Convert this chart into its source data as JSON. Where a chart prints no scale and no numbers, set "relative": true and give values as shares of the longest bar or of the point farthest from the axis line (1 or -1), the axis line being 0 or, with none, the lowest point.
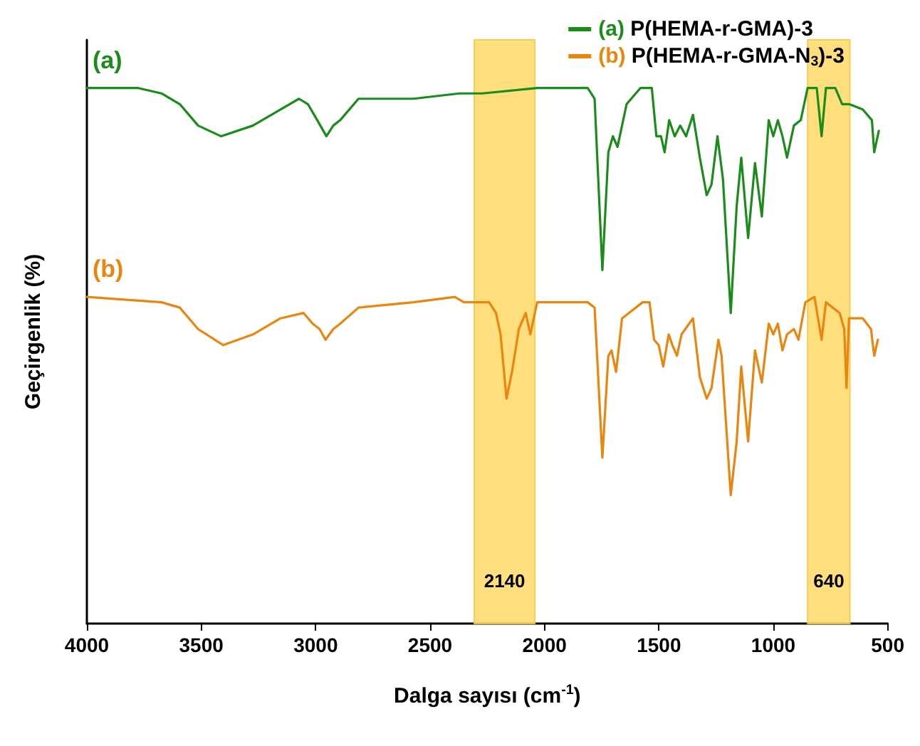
{
  "chart_data": {
    "type": "line",
    "relative": true,
    "xlabel": "Dalga sayısı (cm$^{-1}$)",
    "ylabel": "Geçirgenlik (%)",
    "xlim": [
      4000,
      500
    ],
    "xticks": [
      4000,
      3500,
      3000,
      2500,
      2000,
      1500,
      1000,
      500
    ],
    "grid": false,
    "legend": "top right",
    "marker": "none",
    "line_style": "solid",
    "annotations": [
      "(a)",
      "(b)"
    ],
    "bands": [
      {
        "axis": "x",
        "from": 2307,
        "to": 2042,
        "label": "2140",
        "color": "#ffd966"
      },
      {
        "axis": "x",
        "from": 850,
        "to": 665,
        "label": "640",
        "color": "#ffd966"
      }
    ],
    "series": [
      {
        "name": "(a) P(HEMA-r-GMA)-3",
        "color": "#1a8c1a",
        "x": [
          4000,
          3775,
          3674,
          3594,
          3514,
          3414,
          3274,
          3154,
          3073,
          3034,
          2993,
          2953,
          2923,
          2893,
          2813,
          2573,
          2372,
          2272,
          2032,
          1811,
          1781,
          1747,
          1721,
          1701,
          1681,
          1641,
          1581,
          1531,
          1511,
          1491,
          1475,
          1455,
          1431,
          1407,
          1381,
          1351,
          1321,
          1291,
          1270,
          1244,
          1220,
          1186,
          1160,
          1140,
          1110,
          1080,
          1050,
          1020,
          1000,
          980,
          960,
          940,
          910,
          880,
          850,
          810,
          789,
          770,
          729,
          699,
          669,
          609,
          569,
          559,
          539
        ],
        "values": [
          1.0,
          1.0,
          0.99,
          0.97,
          0.93,
          0.91,
          0.93,
          0.96,
          0.98,
          0.97,
          0.94,
          0.91,
          0.93,
          0.94,
          0.98,
          0.98,
          0.99,
          0.99,
          1.0,
          1.0,
          0.98,
          0.66,
          0.88,
          0.91,
          0.89,
          0.97,
          1.0,
          1.0,
          0.91,
          0.91,
          0.88,
          0.94,
          0.91,
          0.93,
          0.91,
          0.95,
          0.87,
          0.8,
          0.82,
          0.91,
          0.83,
          0.58,
          0.78,
          0.87,
          0.72,
          0.86,
          0.76,
          0.94,
          0.91,
          0.94,
          0.91,
          0.87,
          0.93,
          0.94,
          1.0,
          1.0,
          0.91,
          1.0,
          1.0,
          0.97,
          0.97,
          0.96,
          0.94,
          0.88,
          0.92
        ]
      },
      {
        "name": "(b) P(HEMA-r-GMA-N$_{3}$)-3",
        "color": "#e8860f",
        "x": [
          4000,
          3674,
          3594,
          3514,
          3404,
          3274,
          3154,
          3053,
          3013,
          2983,
          2957,
          2923,
          2893,
          2813,
          2573,
          2392,
          2352,
          2332,
          2272,
          2242,
          2212,
          2192,
          2166,
          2142,
          2112,
          2082,
          2062,
          2032,
          1811,
          1781,
          1747,
          1721,
          1707,
          1687,
          1661,
          1631,
          1571,
          1541,
          1521,
          1501,
          1481,
          1457,
          1441,
          1421,
          1401,
          1351,
          1321,
          1291,
          1270,
          1240,
          1226,
          1186,
          1160,
          1140,
          1110,
          1080,
          1050,
          1020,
          1000,
          980,
          960,
          940,
          910,
          890,
          860,
          820,
          789,
          770,
          710,
          690,
          680,
          669,
          609,
          573,
          559,
          543
        ],
        "values": [
          0.61,
          0.6,
          0.59,
          0.55,
          0.52,
          0.54,
          0.57,
          0.58,
          0.56,
          0.55,
          0.53,
          0.55,
          0.56,
          0.59,
          0.6,
          0.61,
          0.6,
          0.6,
          0.6,
          0.6,
          0.58,
          0.54,
          0.42,
          0.47,
          0.55,
          0.58,
          0.54,
          0.6,
          0.6,
          0.59,
          0.31,
          0.5,
          0.51,
          0.47,
          0.57,
          0.58,
          0.6,
          0.6,
          0.53,
          0.52,
          0.48,
          0.54,
          0.52,
          0.5,
          0.54,
          0.57,
          0.46,
          0.42,
          0.44,
          0.53,
          0.5,
          0.24,
          0.34,
          0.48,
          0.34,
          0.51,
          0.45,
          0.56,
          0.54,
          0.56,
          0.51,
          0.54,
          0.55,
          0.53,
          0.6,
          0.61,
          0.53,
          0.6,
          0.58,
          0.55,
          0.44,
          0.57,
          0.57,
          0.55,
          0.5,
          0.53
        ]
      }
    ]
  }
}
